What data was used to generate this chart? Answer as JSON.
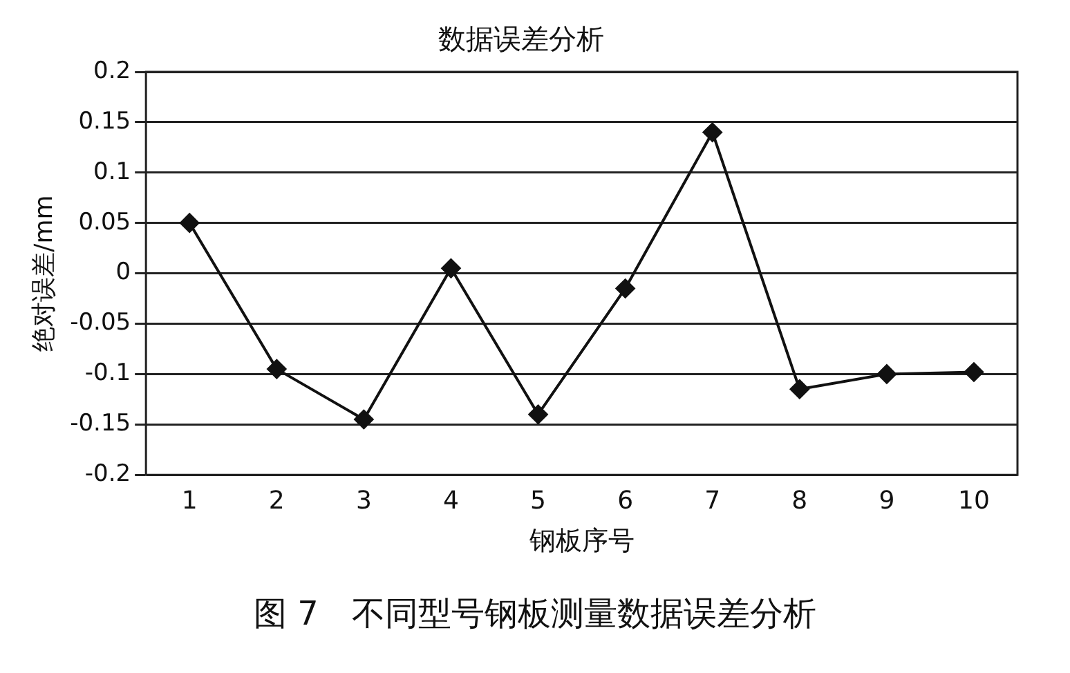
{
  "chart_data": {
    "type": "line",
    "title": "数据误差分析",
    "xlabel": "钢板序号",
    "ylabel": "绝对误差/mm",
    "categories": [
      "1",
      "2",
      "3",
      "4",
      "5",
      "6",
      "7",
      "8",
      "9",
      "10"
    ],
    "series": [
      {
        "color": "#111111",
        "values": [
          0.05,
          -0.095,
          -0.145,
          0.005,
          -0.14,
          -0.015,
          0.14,
          -0.115,
          -0.1,
          -0.098
        ]
      }
    ],
    "ylim": [
      -0.2,
      0.2
    ],
    "yticks": [
      -0.2,
      -0.15,
      -0.1,
      -0.05,
      0,
      0.05,
      0.1,
      0.15,
      0.2
    ],
    "grid": "y",
    "legend": false,
    "marker": "diamond",
    "line_style": "solid",
    "annotations": [
      "图 7　不同型号钢板测量数据误差分析"
    ]
  }
}
